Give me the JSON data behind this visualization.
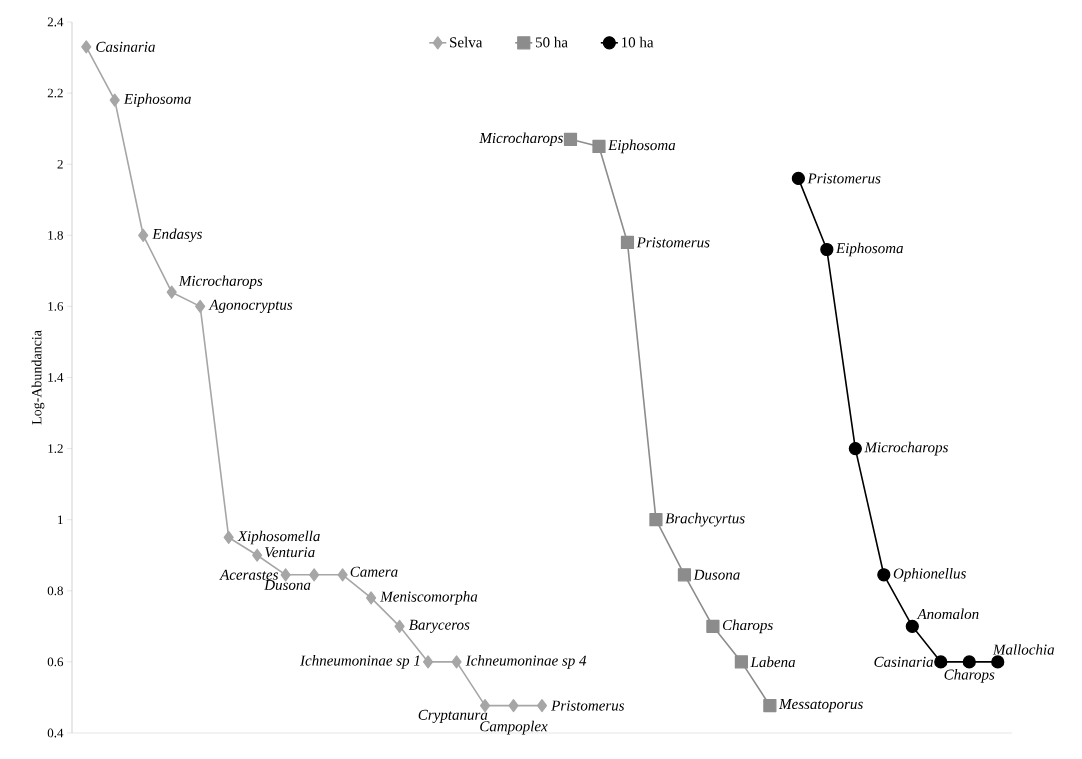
{
  "chart_data": {
    "type": "line",
    "ylabel": "Log-Abundancia",
    "categories": [
      null,
      null,
      null,
      null,
      null,
      null,
      null,
      null,
      null,
      null,
      null,
      null,
      null,
      null,
      null,
      null,
      null,
      null,
      null,
      null,
      null,
      null,
      null,
      null,
      null,
      null,
      null,
      null,
      null,
      null,
      null,
      null,
      null
    ],
    "ylim": [
      0.4,
      2.4
    ],
    "yticks": [
      0.4,
      0.6,
      0.8,
      1,
      1.2,
      1.4,
      1.6,
      1.8,
      2,
      2.2,
      2.4
    ],
    "grid": false,
    "legend": "top",
    "tick_labels": "y",
    "series": [
      {
        "name": "Selva",
        "color": "#a6a6a6",
        "marker": "diamond",
        "values": [
          2.33,
          2.18,
          1.8,
          1.64,
          1.6,
          0.95,
          0.9,
          0.845,
          0.845,
          0.845,
          0.78,
          0.7,
          0.6,
          0.6,
          0.477,
          0.477,
          0.477,
          null,
          null,
          null,
          null,
          null,
          null,
          null,
          null,
          null,
          null,
          null,
          null,
          null,
          null,
          null,
          null
        ],
        "value_labels": [
          "Casinaria",
          "Eiphosoma",
          "Endasys",
          "Microcharops",
          "Agonocryptus",
          "Xiphosomella",
          "Venturia",
          "Acerastes",
          "Dusona",
          "Camera",
          "Meniscomorpha",
          "Baryceros",
          "Ichneumoninae sp 1",
          "Ichneumoninae sp 4",
          "Cryptanura",
          "Campoplex",
          "Pristomerus",
          null,
          null,
          null,
          null,
          null,
          null,
          null,
          null,
          null,
          null,
          null,
          null,
          null,
          null,
          null,
          null
        ]
      },
      {
        "name": "50 ha",
        "color": "#8c8c8c",
        "marker": "square",
        "values": [
          null,
          null,
          null,
          null,
          null,
          null,
          null,
          null,
          null,
          null,
          null,
          null,
          null,
          null,
          null,
          null,
          null,
          2.07,
          2.05,
          1.78,
          1.0,
          0.845,
          0.7,
          0.6,
          0.477,
          null,
          null,
          null,
          null,
          null,
          null,
          null,
          null
        ],
        "value_labels": [
          null,
          null,
          null,
          null,
          null,
          null,
          null,
          null,
          null,
          null,
          null,
          null,
          null,
          null,
          null,
          null,
          null,
          "Microcharops",
          "Eiphosoma",
          "Pristomerus",
          "Brachycyrtus",
          "Dusona",
          "Charops",
          "Labena",
          "Messatoporus",
          null,
          null,
          null,
          null,
          null,
          null,
          null,
          null
        ]
      },
      {
        "name": "10 ha",
        "color": "#000000",
        "marker": "circle",
        "values": [
          null,
          null,
          null,
          null,
          null,
          null,
          null,
          null,
          null,
          null,
          null,
          null,
          null,
          null,
          null,
          null,
          null,
          null,
          null,
          null,
          null,
          null,
          null,
          null,
          null,
          1.96,
          1.76,
          1.2,
          0.845,
          0.7,
          0.6,
          0.6,
          0.6
        ],
        "value_labels": [
          null,
          null,
          null,
          null,
          null,
          null,
          null,
          null,
          null,
          null,
          null,
          null,
          null,
          null,
          null,
          null,
          null,
          null,
          null,
          null,
          null,
          null,
          null,
          null,
          null,
          "Pristomerus",
          "Eiphosoma",
          "Microcharops",
          "Ophionellus",
          "Anomalon",
          "Casinaria",
          "Charops",
          "Mallochia"
        ]
      }
    ]
  }
}
